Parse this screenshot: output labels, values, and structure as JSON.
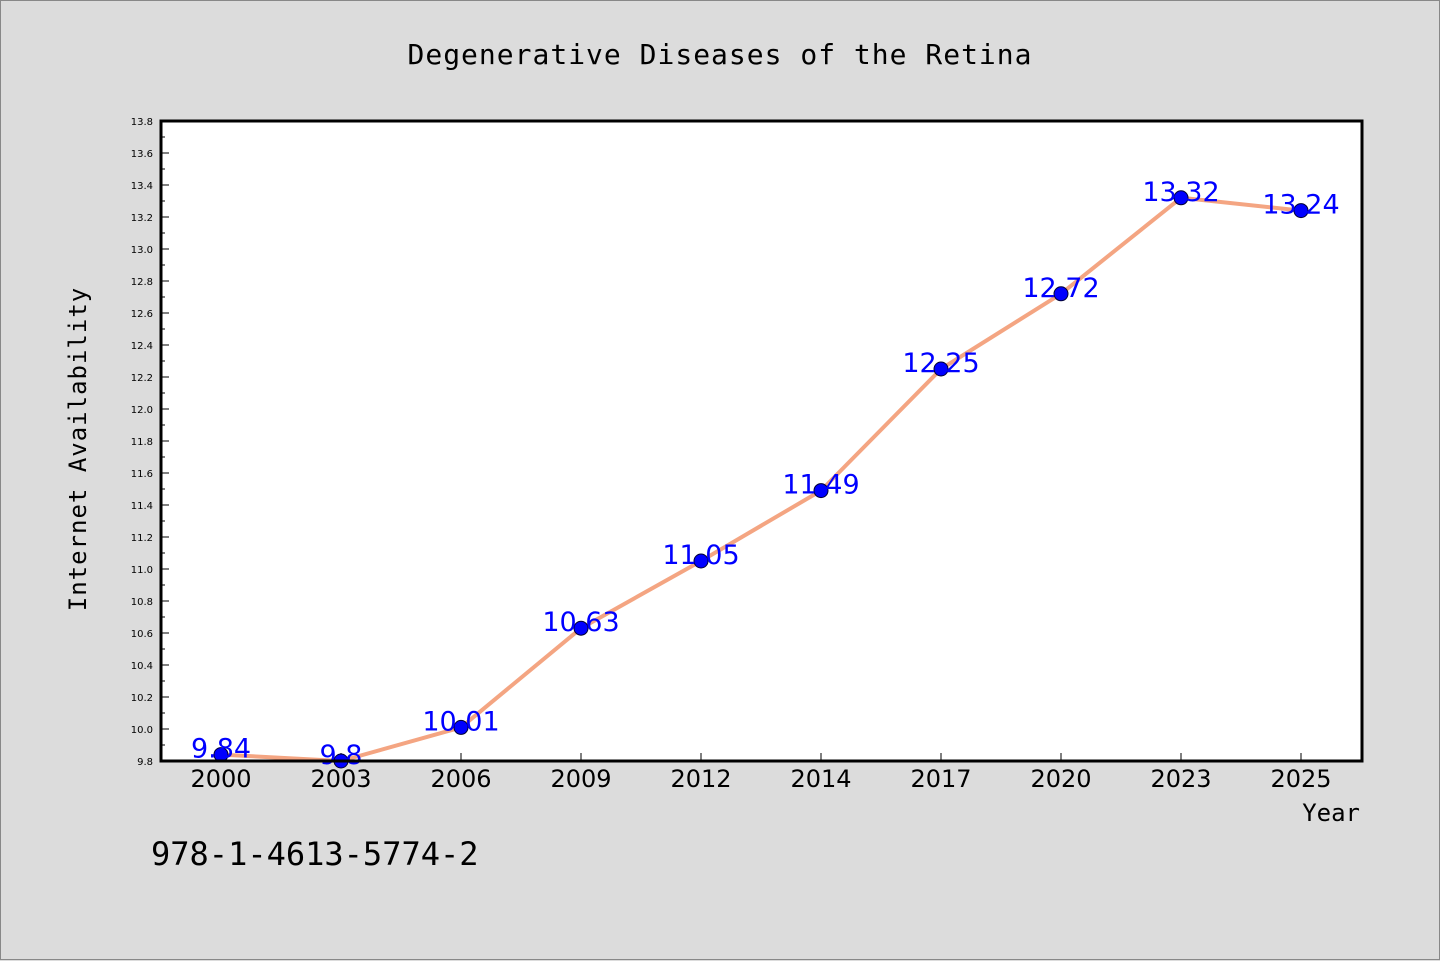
{
  "chart_data": {
    "type": "line",
    "title": "Degenerative Diseases of the Retina",
    "xlabel": "Year",
    "ylabel": "Internet Availability",
    "categories": [
      "2000",
      "2003",
      "2006",
      "2009",
      "2012",
      "2014",
      "2017",
      "2020",
      "2023",
      "2025"
    ],
    "series": [
      {
        "values": [
          9.84,
          9.8,
          10.01,
          10.63,
          11.05,
          11.49,
          12.25,
          12.72,
          13.32,
          13.24
        ]
      }
    ],
    "data_labels": [
      "9.84",
      "9.8",
      "10.01",
      "10.63",
      "11.05",
      "11.49",
      "12.25",
      "12.72",
      "13.32",
      "13.24"
    ],
    "ylim": [
      9.8,
      13.8
    ],
    "yticks": [
      "9.8",
      "10.0",
      "10.2",
      "10.4",
      "10.6",
      "10.8",
      "11.0",
      "11.2",
      "11.4",
      "11.6",
      "11.8",
      "12.0",
      "12.2",
      "12.4",
      "12.6",
      "12.8",
      "13.0",
      "13.2",
      "13.4",
      "13.6",
      "13.8"
    ],
    "grid": false,
    "line_color": "#f4a582",
    "marker_color": "#0000ff",
    "label_color": "#0000ff"
  },
  "annotation": "978-1-4613-5774-2"
}
